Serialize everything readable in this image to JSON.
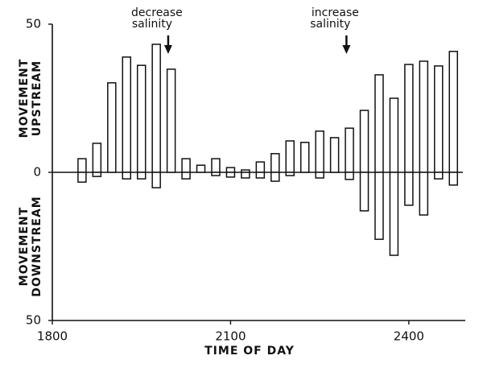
{
  "chart_data": {
    "type": "bar",
    "xlabel": "TIME OF DAY",
    "ylabel_upper": [
      "MOVEMENT",
      "UPSTREAM"
    ],
    "ylabel_lower": [
      "MOVEMENT",
      "DOWNSTREAM"
    ],
    "x": [
      18.5,
      18.75,
      19,
      19.25,
      19.5,
      19.75,
      20,
      20.25,
      20.5,
      20.75,
      21,
      21.25,
      21.5,
      21.75,
      22,
      22.25,
      22.5,
      22.75,
      23,
      23.25,
      23.5,
      23.75,
      24,
      24.25,
      24.5,
      24.75
    ],
    "series": [
      {
        "color": "#ffffff",
        "values": [
          4.6,
          9.8,
          30.2,
          38.9,
          36.1,
          43.2,
          34.8,
          4.6,
          2.4,
          4.6,
          1.6,
          0.8,
          3.5,
          6.3,
          10.6,
          10.1,
          13.9,
          11.7,
          14.9,
          20.9,
          32.9,
          25,
          36.4,
          37.5,
          35.9,
          40.8
        ]
      },
      {
        "color": "#ffffff",
        "values": [
          -3.3,
          -1.4,
          0,
          -2.2,
          -2.2,
          -5.2,
          0,
          -2.2,
          0,
          -1.1,
          -1.6,
          -1.9,
          -1.9,
          -3.0,
          -1.1,
          0,
          -1.9,
          0,
          -2.4,
          -13,
          -22.6,
          -28,
          -11.1,
          -14.4,
          -2.2,
          -4.3
        ]
      }
    ],
    "xlim": [
      18,
      24.95
    ],
    "xticks": [
      {
        "value": 18,
        "label": "1800"
      },
      {
        "value": 21,
        "label": "2100"
      },
      {
        "value": 24,
        "label": "2400"
      }
    ],
    "ylim": [
      -50,
      50
    ],
    "yticks": [
      {
        "value": -50,
        "label": "50"
      },
      0,
      50
    ],
    "annotations": [
      {
        "text": [
          "decrease",
          "salinity"
        ],
        "x": 19.95
      },
      {
        "text": [
          "increase",
          "salinity"
        ],
        "x": 22.95
      }
    ]
  }
}
